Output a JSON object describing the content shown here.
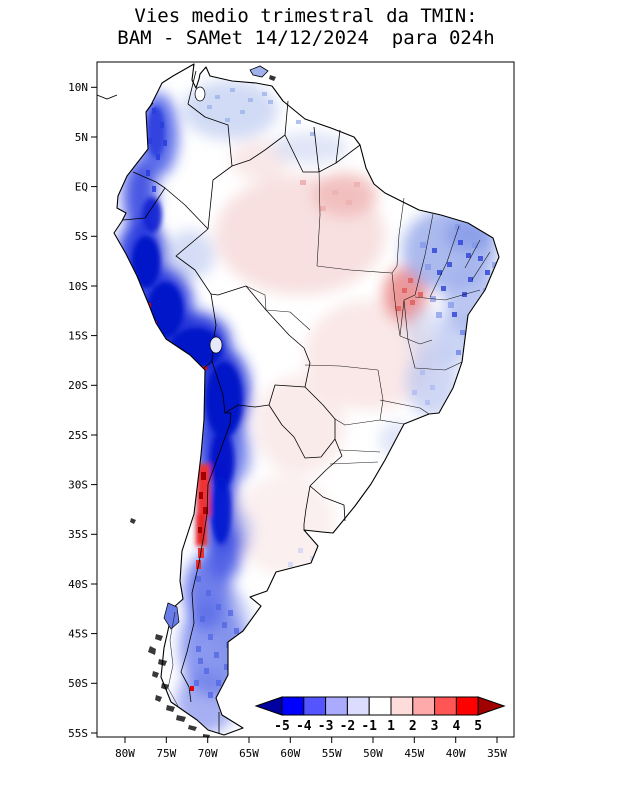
{
  "title": {
    "line1": "Vies medio trimestral da TMIN:",
    "line2": "BAM - SAMet 14/12/2024  para 024h"
  },
  "axes": {
    "lat_labels": [
      "10N",
      "5N",
      "EQ",
      "5S",
      "10S",
      "15S",
      "20S",
      "25S",
      "30S",
      "35S",
      "40S",
      "45S",
      "50S",
      "55S"
    ],
    "lon_labels": [
      "80W",
      "75W",
      "70W",
      "65W",
      "60W",
      "55W",
      "50W",
      "45W",
      "40W",
      "35W"
    ]
  },
  "colorbar": {
    "labels": [
      "-5",
      "-4",
      "-3",
      "-2",
      "-1",
      "1",
      "2",
      "3",
      "4",
      "5"
    ],
    "colors": [
      "#0000a0",
      "#0000ff",
      "#5555ff",
      "#aaaaff",
      "#dcdcff",
      "#ffffff",
      "#ffdcdc",
      "#ffaaaa",
      "#ff5555",
      "#ff0000",
      "#a00000"
    ]
  },
  "frame": {
    "background": "#ffffff",
    "line_color": "#000000"
  }
}
